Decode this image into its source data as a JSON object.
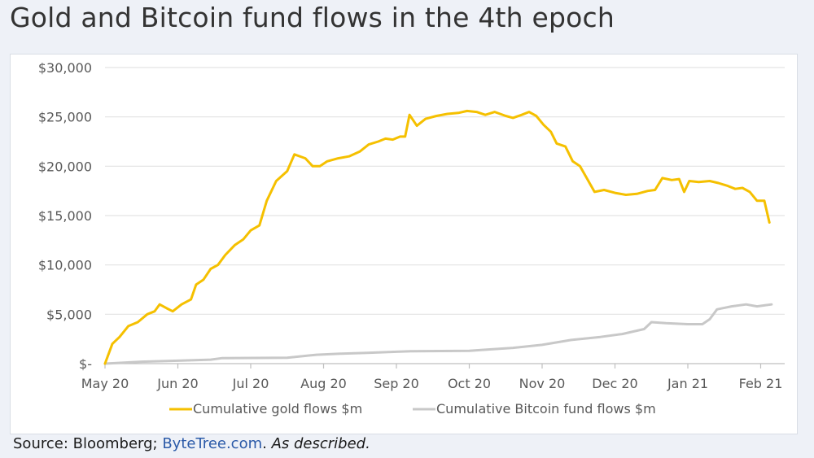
{
  "page": {
    "title": "Gold and Bitcoin fund flows in the 4th epoch",
    "source": {
      "prefix": "Source: Bloomberg; ",
      "link": "ByteTree.com",
      "separator": ". ",
      "note": "As described."
    }
  },
  "chart_data": {
    "type": "line",
    "title": "Gold and Bitcoin fund flows in the 4th epoch",
    "xlabel": "",
    "ylabel": "",
    "x_tick_labels": [
      "May 20",
      "Jun 20",
      "Jul 20",
      "Aug 20",
      "Sep 20",
      "Oct 20",
      "Nov 20",
      "Dec 20",
      "Jan 21",
      "Feb 21"
    ],
    "x_range_months": [
      0,
      9.15
    ],
    "y_ticks": [
      0,
      5000,
      10000,
      15000,
      20000,
      25000,
      30000
    ],
    "y_tick_labels": [
      "$-",
      "$5,000",
      "$10,000",
      "$15,000",
      "$20,000",
      "$25,000",
      "$30,000"
    ],
    "ylim": [
      0,
      30000
    ],
    "grid": true,
    "legend_position": "bottom",
    "series": [
      {
        "name": "Cumulative gold flows $m",
        "color": "#f5c000",
        "points": [
          [
            0,
            0
          ],
          [
            0.1,
            2000
          ],
          [
            0.2,
            2700
          ],
          [
            0.32,
            3800
          ],
          [
            0.45,
            4200
          ],
          [
            0.58,
            5000
          ],
          [
            0.68,
            5300
          ],
          [
            0.75,
            6000
          ],
          [
            0.85,
            5600
          ],
          [
            0.93,
            5300
          ],
          [
            1.05,
            6000
          ],
          [
            1.18,
            6500
          ],
          [
            1.25,
            8000
          ],
          [
            1.35,
            8500
          ],
          [
            1.45,
            9600
          ],
          [
            1.55,
            10000
          ],
          [
            1.65,
            11000
          ],
          [
            1.78,
            12000
          ],
          [
            1.9,
            12600
          ],
          [
            2.0,
            13500
          ],
          [
            2.12,
            14000
          ],
          [
            2.22,
            16500
          ],
          [
            2.35,
            18500
          ],
          [
            2.5,
            19500
          ],
          [
            2.6,
            21200
          ],
          [
            2.75,
            20800
          ],
          [
            2.85,
            20000
          ],
          [
            2.95,
            20000
          ],
          [
            3.05,
            20500
          ],
          [
            3.2,
            20800
          ],
          [
            3.35,
            21000
          ],
          [
            3.5,
            21500
          ],
          [
            3.62,
            22200
          ],
          [
            3.75,
            22500
          ],
          [
            3.85,
            22800
          ],
          [
            3.95,
            22700
          ],
          [
            4.05,
            23000
          ],
          [
            4.12,
            23000
          ],
          [
            4.18,
            25200
          ],
          [
            4.28,
            24100
          ],
          [
            4.4,
            24800
          ],
          [
            4.55,
            25100
          ],
          [
            4.7,
            25300
          ],
          [
            4.85,
            25400
          ],
          [
            4.97,
            25600
          ],
          [
            5.1,
            25500
          ],
          [
            5.22,
            25200
          ],
          [
            5.35,
            25500
          ],
          [
            5.5,
            25100
          ],
          [
            5.6,
            24900
          ],
          [
            5.72,
            25200
          ],
          [
            5.82,
            25500
          ],
          [
            5.92,
            25100
          ],
          [
            6.02,
            24200
          ],
          [
            6.12,
            23500
          ],
          [
            6.2,
            22300
          ],
          [
            6.32,
            22000
          ],
          [
            6.42,
            20500
          ],
          [
            6.52,
            20000
          ],
          [
            6.62,
            18700
          ],
          [
            6.72,
            17400
          ],
          [
            6.85,
            17600
          ],
          [
            7.0,
            17300
          ],
          [
            7.15,
            17100
          ],
          [
            7.3,
            17200
          ],
          [
            7.45,
            17500
          ],
          [
            7.55,
            17600
          ],
          [
            7.65,
            18800
          ],
          [
            7.78,
            18600
          ],
          [
            7.88,
            18700
          ],
          [
            7.95,
            17400
          ],
          [
            8.02,
            18500
          ],
          [
            8.15,
            18400
          ],
          [
            8.3,
            18500
          ],
          [
            8.42,
            18300
          ],
          [
            8.55,
            18000
          ],
          [
            8.65,
            17700
          ],
          [
            8.75,
            17800
          ],
          [
            8.85,
            17400
          ],
          [
            8.95,
            16500
          ],
          [
            9.05,
            16500
          ],
          [
            9.12,
            14300
          ]
        ]
      },
      {
        "name": "Cumulative Bitcoin fund flows $m",
        "color": "#c8c8c8",
        "points": [
          [
            0,
            0
          ],
          [
            0.5,
            200
          ],
          [
            1.0,
            300
          ],
          [
            1.45,
            400
          ],
          [
            1.6,
            550
          ],
          [
            2.5,
            600
          ],
          [
            2.9,
            900
          ],
          [
            3.2,
            1000
          ],
          [
            3.6,
            1100
          ],
          [
            4.0,
            1200
          ],
          [
            4.2,
            1250
          ],
          [
            5.0,
            1300
          ],
          [
            5.2,
            1400
          ],
          [
            5.6,
            1600
          ],
          [
            6.0,
            1900
          ],
          [
            6.4,
            2400
          ],
          [
            6.8,
            2700
          ],
          [
            7.1,
            3000
          ],
          [
            7.4,
            3500
          ],
          [
            7.5,
            4200
          ],
          [
            7.7,
            4100
          ],
          [
            8.0,
            4000
          ],
          [
            8.2,
            4000
          ],
          [
            8.3,
            4500
          ],
          [
            8.4,
            5500
          ],
          [
            8.6,
            5800
          ],
          [
            8.8,
            6000
          ],
          [
            8.95,
            5800
          ],
          [
            9.05,
            5900
          ],
          [
            9.15,
            6000
          ]
        ]
      }
    ]
  }
}
